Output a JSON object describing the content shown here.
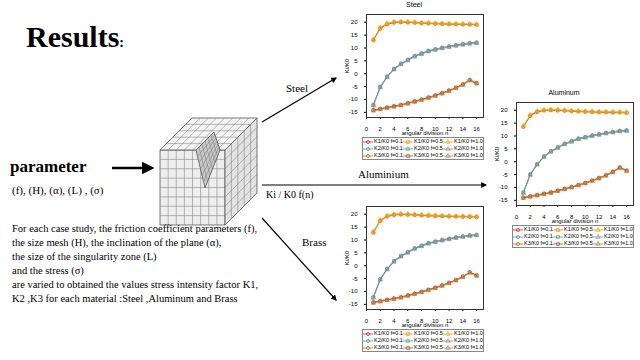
{
  "slide": {
    "title": "Results",
    "title_suffix": ":",
    "parameter_label": "parameter",
    "parameter_list": "(f), (H), (α), (L) , (σ)",
    "description": [
      "For each case study, the friction coefficient parameters (f),",
      "the size mesh (H), the inclination of the plane (α),",
      "the size of the singularity zone (L)",
      "and the stress (σ)",
      "are varied to obtained the values stress intensity factor K1, K2 ,K3 for each material :Steel ,Aluminum and Brass"
    ],
    "arrow_labels": {
      "steel": "Steel",
      "aluminium": "Aluminium",
      "brass": "Brass",
      "output": "Ki / K0 f(n)"
    }
  },
  "chart_data": [
    {
      "type": "line",
      "title": "Steel",
      "x_label": "angular division n",
      "y_label": "Ki/K0",
      "x": [
        1,
        2,
        3,
        4,
        5,
        6,
        7,
        8,
        9,
        10,
        11,
        12,
        13,
        14,
        15,
        16
      ],
      "xlim": [
        0,
        17
      ],
      "xticks": [
        0,
        2,
        4,
        6,
        8,
        10,
        12,
        14,
        16
      ],
      "ylim": [
        -17,
        23
      ],
      "yticks": [
        -15,
        -10,
        -5,
        0,
        5,
        10,
        15,
        20
      ],
      "grid": false,
      "legend": "bottom",
      "series": [
        {
          "name": "K1/K0 f=0.1",
          "color": "#d62728",
          "marker": "circle",
          "values": [
            13,
            17.5,
            19.2,
            19.8,
            20,
            19.9,
            19.8,
            19.6,
            19.5,
            19.4,
            19.3,
            19.2,
            19.2,
            19.1,
            19.1,
            19
          ]
        },
        {
          "name": "K1/K0 f=0.5",
          "color": "#ff7f0e",
          "marker": "square",
          "values": [
            13.2,
            17.8,
            19.4,
            20,
            20.1,
            20,
            19.9,
            19.7,
            19.6,
            19.5,
            19.4,
            19.3,
            19.3,
            19.2,
            19.2,
            19.1
          ]
        },
        {
          "name": "K1/K0 f=1.0",
          "color": "#e0b000",
          "marker": "triangle",
          "values": [
            13.4,
            18,
            19.6,
            20.2,
            20.3,
            20.2,
            20.1,
            19.9,
            19.8,
            19.7,
            19.6,
            19.5,
            19.4,
            19.4,
            19.3,
            19.3
          ]
        },
        {
          "name": "K2/K0 f=0.1",
          "color": "#4f8fa8",
          "marker": "circle",
          "values": [
            -12,
            -5,
            -1,
            2,
            4,
            5.5,
            7,
            8,
            9,
            9.6,
            10.2,
            10.7,
            11.2,
            11.6,
            12,
            12.2
          ]
        },
        {
          "name": "K2/K0 f=0.5",
          "color": "#5f9a8a",
          "marker": "square",
          "values": [
            -12.2,
            -5.2,
            -1.2,
            1.8,
            3.8,
            5.3,
            6.8,
            7.8,
            8.8,
            9.4,
            10,
            10.5,
            11,
            11.4,
            11.8,
            12
          ]
        },
        {
          "name": "K2/K0 f=1.0",
          "color": "#8c8c8c",
          "marker": "triangle",
          "values": [
            -12.4,
            -5.4,
            -1.4,
            1.6,
            3.6,
            5.1,
            6.6,
            7.6,
            8.6,
            9.2,
            9.8,
            10.3,
            10.8,
            11.2,
            11.6,
            11.8
          ]
        },
        {
          "name": "K3/K0 f=0.1",
          "color": "#e06000",
          "marker": "circle",
          "values": [
            -14,
            -13.5,
            -13,
            -12.5,
            -12,
            -11.3,
            -10.6,
            -9.9,
            -9.1,
            -8.3,
            -7.4,
            -6.4,
            -5.3,
            -4,
            -2.3,
            -3.5
          ]
        },
        {
          "name": "K3/K0 f=0.5",
          "color": "#a0522d",
          "marker": "square",
          "values": [
            -14.2,
            -13.7,
            -13.2,
            -12.7,
            -12.2,
            -11.5,
            -10.8,
            -10.1,
            -9.3,
            -8.5,
            -7.6,
            -6.6,
            -5.5,
            -4.2,
            -2.5,
            -3.7
          ]
        },
        {
          "name": "K3/K0 f=1.0",
          "color": "#c08040",
          "marker": "triangle",
          "values": [
            -14.4,
            -13.9,
            -13.4,
            -12.9,
            -12.4,
            -11.7,
            -11,
            -10.3,
            -9.5,
            -8.7,
            -7.8,
            -6.8,
            -5.7,
            -4.4,
            -2.7,
            -3.9
          ]
        }
      ]
    },
    {
      "type": "line",
      "title": "Aluminum",
      "x_label": "angular division n",
      "y_label": "Ki/K0",
      "x": [
        1,
        2,
        3,
        4,
        5,
        6,
        7,
        8,
        9,
        10,
        11,
        12,
        13,
        14,
        15,
        16
      ],
      "xlim": [
        0,
        17
      ],
      "xticks": [
        0,
        2,
        4,
        6,
        8,
        10,
        12,
        14,
        16
      ],
      "ylim": [
        -17,
        23
      ],
      "yticks": [
        -15,
        -10,
        -5,
        0,
        5,
        10,
        15,
        20
      ],
      "grid": false,
      "legend": "bottom",
      "series": [
        {
          "name": "K1/K0 f=0.1",
          "color": "#d62728",
          "marker": "circle",
          "values": [
            13.5,
            17.8,
            19.3,
            19.9,
            20,
            19.9,
            19.8,
            19.6,
            19.5,
            19.4,
            19.3,
            19.2,
            19.2,
            19.1,
            19.1,
            19
          ]
        },
        {
          "name": "K1/K0 f=0.5",
          "color": "#ff7f0e",
          "marker": "square",
          "values": [
            13.7,
            18,
            19.5,
            20,
            20.1,
            20,
            19.9,
            19.7,
            19.6,
            19.5,
            19.4,
            19.3,
            19.3,
            19.2,
            19.2,
            19.1
          ]
        },
        {
          "name": "K1/K0 f=1.0",
          "color": "#e0b000",
          "marker": "triangle",
          "values": [
            13.9,
            18.2,
            19.7,
            20.2,
            20.3,
            20.2,
            20.1,
            19.9,
            19.8,
            19.7,
            19.6,
            19.5,
            19.4,
            19.4,
            19.3,
            19.3
          ]
        },
        {
          "name": "K2/K0 f=0.1",
          "color": "#4f8fa8",
          "marker": "circle",
          "values": [
            -11.8,
            -4.8,
            -0.8,
            2.2,
            4.2,
            5.7,
            7.1,
            8.1,
            9.1,
            9.7,
            10.3,
            10.8,
            11.3,
            11.7,
            12.1,
            12.3
          ]
        },
        {
          "name": "K2/K0 f=0.5",
          "color": "#5f9a8a",
          "marker": "square",
          "values": [
            -12,
            -5,
            -1,
            2,
            4,
            5.5,
            6.9,
            7.9,
            8.9,
            9.5,
            10.1,
            10.6,
            11.1,
            11.5,
            11.9,
            12.1
          ]
        },
        {
          "name": "K2/K0 f=1.0",
          "color": "#8c8c8c",
          "marker": "triangle",
          "values": [
            -12.2,
            -5.2,
            -1.2,
            1.8,
            3.8,
            5.3,
            6.7,
            7.7,
            8.7,
            9.3,
            9.9,
            10.4,
            10.9,
            11.3,
            11.7,
            11.9
          ]
        },
        {
          "name": "K3/K0 f=0.1",
          "color": "#e06000",
          "marker": "circle",
          "values": [
            -13.8,
            -13.3,
            -12.8,
            -12.3,
            -11.8,
            -11.1,
            -10.4,
            -9.7,
            -8.9,
            -8.1,
            -7.2,
            -6.2,
            -5.1,
            -3.8,
            -2.1,
            -3.3
          ]
        },
        {
          "name": "K3/K0 f=0.5",
          "color": "#a0522d",
          "marker": "square",
          "values": [
            -14,
            -13.5,
            -13,
            -12.5,
            -12,
            -11.3,
            -10.6,
            -9.9,
            -9.1,
            -8.3,
            -7.4,
            -6.4,
            -5.3,
            -4,
            -2.3,
            -3.5
          ]
        },
        {
          "name": "K3/K0 f=1.0",
          "color": "#c08040",
          "marker": "triangle",
          "values": [
            -14.2,
            -13.7,
            -13.2,
            -12.7,
            -12.2,
            -11.5,
            -10.8,
            -10.1,
            -9.3,
            -8.5,
            -7.6,
            -6.6,
            -5.5,
            -4.2,
            -2.5,
            -3.7
          ]
        }
      ]
    },
    {
      "type": "line",
      "x_label": "angular division n",
      "y_label": "Ki/K0",
      "x": [
        1,
        2,
        3,
        4,
        5,
        6,
        7,
        8,
        9,
        10,
        11,
        12,
        13,
        14,
        15,
        16
      ],
      "xlim": [
        0,
        17
      ],
      "xticks": [
        0,
        2,
        4,
        6,
        8,
        10,
        12,
        14,
        16
      ],
      "ylim": [
        -17,
        23
      ],
      "yticks": [
        -15,
        -10,
        -5,
        0,
        5,
        10,
        15,
        20
      ],
      "grid": false,
      "legend": "bottom",
      "series": [
        {
          "name": "K1/K0 f=0.1",
          "color": "#d62728",
          "marker": "circle",
          "values": [
            12.8,
            17.4,
            19.1,
            19.7,
            19.9,
            19.8,
            19.7,
            19.5,
            19.4,
            19.3,
            19.2,
            19.1,
            19.1,
            19,
            19,
            18.9
          ]
        },
        {
          "name": "K1/K0 f=0.5",
          "color": "#ff7f0e",
          "marker": "square",
          "values": [
            13,
            17.6,
            19.3,
            19.9,
            20,
            19.9,
            19.8,
            19.6,
            19.5,
            19.4,
            19.3,
            19.2,
            19.2,
            19.1,
            19.1,
            19
          ]
        },
        {
          "name": "K1/K0 f=1.0",
          "color": "#e0b000",
          "marker": "triangle",
          "values": [
            13.2,
            17.8,
            19.5,
            20.1,
            20.2,
            20.1,
            20,
            19.8,
            19.7,
            19.6,
            19.5,
            19.4,
            19.3,
            19.3,
            19.2,
            19.2
          ]
        },
        {
          "name": "K2/K0 f=0.1",
          "color": "#4f8fa8",
          "marker": "circle",
          "values": [
            -12.1,
            -5.1,
            -1.1,
            1.9,
            3.9,
            5.4,
            6.9,
            7.9,
            8.9,
            9.5,
            10.1,
            10.6,
            11.1,
            11.5,
            11.9,
            12.1
          ]
        },
        {
          "name": "K2/K0 f=0.5",
          "color": "#5f9a8a",
          "marker": "square",
          "values": [
            -12.3,
            -5.3,
            -1.3,
            1.7,
            3.7,
            5.2,
            6.7,
            7.7,
            8.7,
            9.3,
            9.9,
            10.4,
            10.9,
            11.3,
            11.7,
            11.9
          ]
        },
        {
          "name": "K2/K0 f=1.0",
          "color": "#8c8c8c",
          "marker": "triangle",
          "values": [
            -12.5,
            -5.5,
            -1.5,
            1.5,
            3.5,
            5,
            6.5,
            7.5,
            8.5,
            9.1,
            9.7,
            10.2,
            10.7,
            11.1,
            11.5,
            11.7
          ]
        },
        {
          "name": "K3/K0 f=0.1",
          "color": "#e06000",
          "marker": "circle",
          "values": [
            -14.1,
            -13.6,
            -13.1,
            -12.6,
            -12.1,
            -11.4,
            -10.7,
            -10,
            -9.2,
            -8.4,
            -7.5,
            -6.5,
            -5.4,
            -4.1,
            -2.4,
            -3.6
          ]
        },
        {
          "name": "K3/K0 f=0.5",
          "color": "#a0522d",
          "marker": "square",
          "values": [
            -14.3,
            -13.8,
            -13.3,
            -12.8,
            -12.3,
            -11.6,
            -10.9,
            -10.2,
            -9.4,
            -8.6,
            -7.7,
            -6.7,
            -5.6,
            -4.3,
            -2.6,
            -3.8
          ]
        },
        {
          "name": "K3/K0 f=1.0",
          "color": "#c08040",
          "marker": "triangle",
          "values": [
            -14.5,
            -14,
            -13.5,
            -13,
            -12.5,
            -11.8,
            -11.1,
            -10.4,
            -9.6,
            -8.8,
            -7.9,
            -6.9,
            -5.8,
            -4.5,
            -2.8,
            -4
          ]
        }
      ]
    }
  ]
}
